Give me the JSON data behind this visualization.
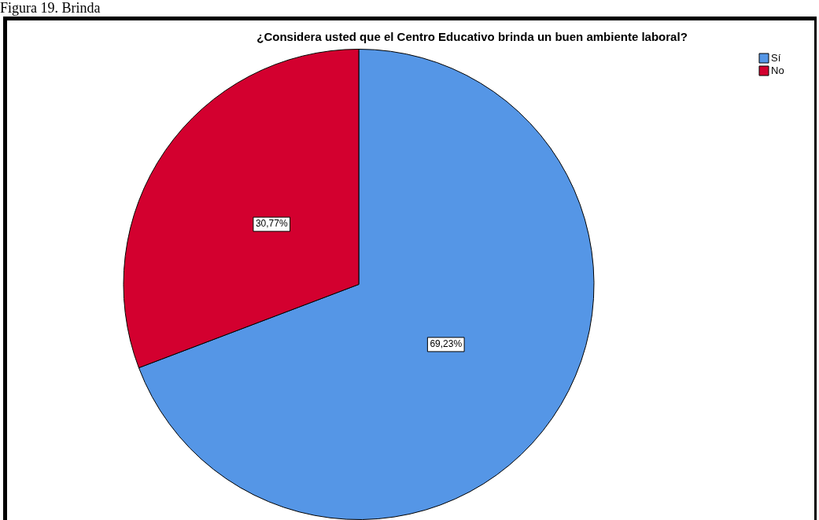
{
  "chart_data": {
    "type": "pie",
    "title": "¿Considera usted que el Centro Educativo brinda un buen ambiente laboral?",
    "categories": [
      "Sí",
      "No"
    ],
    "values": [
      69.23,
      30.77
    ],
    "colors": [
      "#5596e6",
      "#d3002f"
    ],
    "value_labels": [
      "69,23%",
      "30,77%"
    ],
    "legend": "top right",
    "annotations": [
      "Figura 19. Brinda"
    ]
  }
}
